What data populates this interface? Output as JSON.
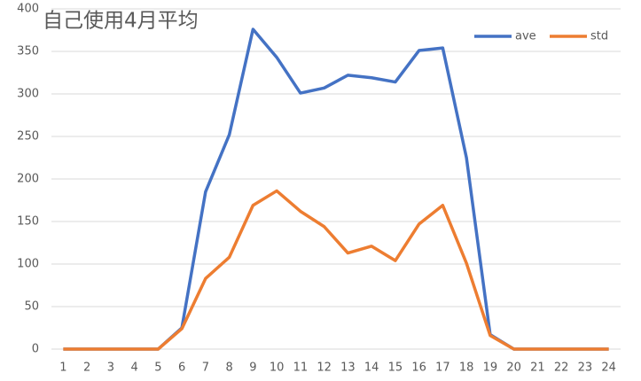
{
  "chart_data": {
    "type": "line",
    "title": "自己使用4月平均",
    "categories": [
      "1",
      "2",
      "3",
      "4",
      "5",
      "6",
      "7",
      "8",
      "9",
      "10",
      "11",
      "12",
      "13",
      "14",
      "15",
      "16",
      "17",
      "18",
      "19",
      "20",
      "21",
      "22",
      "23",
      "24"
    ],
    "series": [
      {
        "name": "ave",
        "color": "#4472c4",
        "values": [
          0,
          0,
          0,
          0,
          0,
          25,
          185,
          252,
          376,
          343,
          301,
          307,
          322,
          319,
          314,
          351,
          354,
          225,
          17,
          0,
          0,
          0,
          0,
          0
        ]
      },
      {
        "name": "std",
        "color": "#ed7d31",
        "values": [
          0,
          0,
          0,
          0,
          0,
          24,
          83,
          108,
          169,
          186,
          162,
          144,
          113,
          121,
          104,
          147,
          169,
          101,
          16,
          0,
          0,
          0,
          0,
          0
        ]
      }
    ],
    "ylim": [
      0,
      400
    ],
    "yticks": [
      0,
      50,
      100,
      150,
      200,
      250,
      300,
      350,
      400
    ],
    "grid": true,
    "legend": "top-right"
  }
}
